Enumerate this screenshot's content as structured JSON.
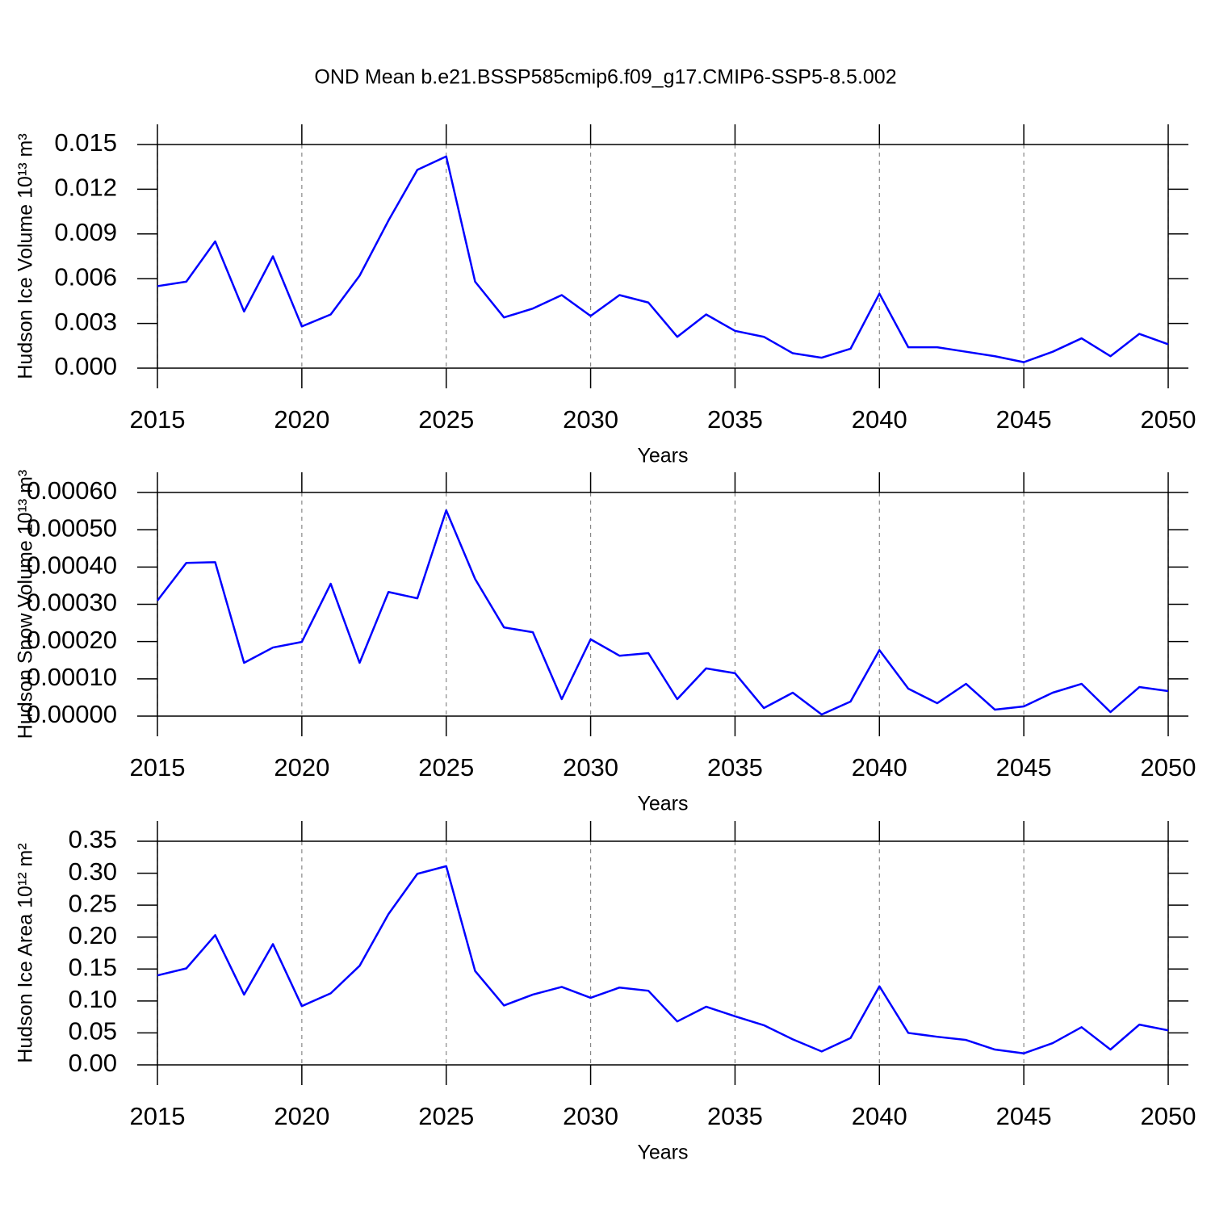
{
  "title": "OND Mean b.e21.BSSP585cmip6.f09_g17.CMIP6-SSP5-8.5.002",
  "chart_data": [
    {
      "type": "line",
      "xlabel": "Years",
      "ylabel": "Hudson Ice Volume 10¹³ m³",
      "color": "#0000ff",
      "grid": true,
      "xlim": [
        2015,
        2050
      ],
      "xticks": [
        2015,
        2020,
        2025,
        2030,
        2035,
        2040,
        2045,
        2050
      ],
      "ylim": [
        0,
        0.015
      ],
      "yticks": [
        {
          "value": 0,
          "label": "0.000"
        },
        0.003,
        0.006,
        0.009,
        0.012,
        0.015
      ],
      "x": [
        2015,
        2016,
        2017,
        2018,
        2019,
        2020,
        2021,
        2022,
        2023,
        2024,
        2025,
        2026,
        2027,
        2028,
        2029,
        2030,
        2031,
        2032,
        2033,
        2034,
        2035,
        2036,
        2037,
        2038,
        2039,
        2040,
        2041,
        2042,
        2043,
        2044,
        2045,
        2046,
        2047,
        2048,
        2049,
        2050
      ],
      "values": [
        0.0055,
        0.0058,
        0.0085,
        0.0038,
        0.0075,
        0.0028,
        0.0036,
        0.0062,
        0.0099,
        0.0133,
        0.0142,
        0.0058,
        0.0034,
        0.004,
        0.0049,
        0.0035,
        0.0049,
        0.0044,
        0.0021,
        0.0036,
        0.0025,
        0.0021,
        0.001,
        0.0007,
        0.0013,
        0.005,
        0.0014,
        0.0014,
        0.0011,
        0.0008,
        0.0004,
        0.0011,
        0.002,
        0.0008,
        0.0023,
        0.0016
      ]
    },
    {
      "type": "line",
      "xlabel": "Years",
      "ylabel": "Hudson Snow Volume 10¹³ m³",
      "color": "#0000ff",
      "grid": true,
      "xlim": [
        2015,
        2050
      ],
      "xticks": [
        2015,
        2020,
        2025,
        2030,
        2035,
        2040,
        2045,
        2050
      ],
      "ylim": [
        0,
        0.0006
      ],
      "yticks": [
        {
          "value": 0,
          "label": "0.00000"
        },
        {
          "value": 0.0001,
          "label": "0.00010"
        },
        {
          "value": 0.0002,
          "label": "0.00020"
        },
        {
          "value": 0.0003,
          "label": "0.00030"
        },
        {
          "value": 0.0004,
          "label": "0.00040"
        },
        {
          "value": 0.0005,
          "label": "0.00050"
        },
        {
          "value": 0.0006,
          "label": "0.00060"
        }
      ],
      "x": [
        2015,
        2016,
        2017,
        2018,
        2019,
        2020,
        2021,
        2022,
        2023,
        2024,
        2025,
        2026,
        2027,
        2028,
        2029,
        2030,
        2031,
        2032,
        2033,
        2034,
        2035,
        2036,
        2037,
        2038,
        2039,
        2040,
        2041,
        2042,
        2043,
        2044,
        2045,
        2046,
        2047,
        2048,
        2049,
        2050
      ],
      "values": [
        0.00031,
        0.000411,
        0.000413,
        0.000143,
        0.000184,
        0.000199,
        0.000355,
        0.000143,
        0.000333,
        0.000316,
        0.000552,
        0.000368,
        0.000238,
        0.000225,
        4.55e-05,
        0.000206,
        0.000162,
        0.000169,
        4.55e-05,
        0.000128,
        0.000115,
        2.16e-05,
        6.28e-05,
        4.3e-06,
        3.9e-05,
        0.000177,
        7.36e-05,
        3.46e-05,
        8.66e-05,
        1.73e-05,
        2.6e-05,
        6.28e-05,
        8.66e-05,
        1.08e-05,
        7.79e-05,
        6.71e-05
      ]
    },
    {
      "type": "line",
      "xlabel": "Years",
      "ylabel": "Hudson Ice Area 10¹² m²",
      "color": "#0000ff",
      "grid": true,
      "xlim": [
        2015,
        2050
      ],
      "xticks": [
        2015,
        2020,
        2025,
        2030,
        2035,
        2040,
        2045,
        2050
      ],
      "ylim": [
        0,
        0.35
      ],
      "yticks": [
        {
          "value": 0,
          "label": "0.00"
        },
        0.05,
        {
          "value": 0.1,
          "label": "0.10"
        },
        0.15,
        {
          "value": 0.2,
          "label": "0.20"
        },
        0.25,
        {
          "value": 0.3,
          "label": "0.30"
        },
        0.35
      ],
      "x": [
        2015,
        2016,
        2017,
        2018,
        2019,
        2020,
        2021,
        2022,
        2023,
        2024,
        2025,
        2026,
        2027,
        2028,
        2029,
        2030,
        2031,
        2032,
        2033,
        2034,
        2035,
        2036,
        2037,
        2038,
        2039,
        2040,
        2041,
        2042,
        2043,
        2044,
        2045,
        2046,
        2047,
        2048,
        2049,
        2050
      ],
      "values": [
        0.14,
        0.151,
        0.203,
        0.11,
        0.189,
        0.092,
        0.112,
        0.155,
        0.236,
        0.299,
        0.311,
        0.147,
        0.093,
        0.11,
        0.122,
        0.105,
        0.121,
        0.116,
        0.068,
        0.091,
        0.076,
        0.062,
        0.04,
        0.021,
        0.042,
        0.123,
        0.05,
        0.044,
        0.039,
        0.024,
        0.018,
        0.034,
        0.059,
        0.024,
        0.063,
        0.054
      ]
    }
  ]
}
